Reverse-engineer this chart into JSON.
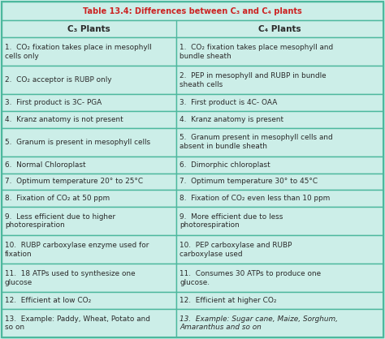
{
  "title": "Table 13.4: Differences between C₃ and C₄ plants",
  "col1_header": "C₃ Plants",
  "col2_header": "C₄ Plants",
  "rows": [
    [
      "CO₂ fixation takes place in mesophyll\ncells only",
      "CO₂ fixation takes place mesophyll and\nbundle sheath"
    ],
    [
      "CO₂ acceptor is RUBP only",
      "PEP in mesophyll and RUBP in bundle\nsheath cells"
    ],
    [
      "First product is 3C- PGA",
      "First product is 4C- OAA"
    ],
    [
      "Kranz anatomy is not present",
      "Kranz anatomy is present"
    ],
    [
      "Granum is present in mesophyll cells",
      "Granum present in mesophyll cells and\nabsent in bundle sheath"
    ],
    [
      "Normal Chloroplast",
      "Dimorphic chloroplast"
    ],
    [
      "Optimum temperature 20° to 25°C",
      "Optimum temperature 30° to 45°C"
    ],
    [
      "Fixation of CO₂ at 50 ppm",
      "Fixation of CO₂ even less than 10 ppm"
    ],
    [
      "Less efficient due to higher\nphotorespiration",
      "More efficient due to less\nphotorespiration"
    ],
    [
      "RUBP carboxylase enzyme used for\nfixation",
      "PEP carboxylase and RUBP\ncarboxylase used"
    ],
    [
      "18 ATPs used to synthesize one\nglucose",
      "Consumes 30 ATPs to produce one\nglucose."
    ],
    [
      "Efficient at low CO₂",
      "Efficient at higher CO₂"
    ],
    [
      "Example: Paddy, Wheat, Potato and\nso on",
      "Example: Sugar cane, Maize, Sorghum,\nAmaranthus and so on"
    ]
  ],
  "bg_color": "#cceee8",
  "border_color": "#4db89e",
  "title_color": "#cc2222",
  "text_color": "#2a2a2a",
  "title_fontsize": 7.0,
  "header_fontsize": 7.5,
  "cell_fontsize": 6.4,
  "fig_width": 4.74,
  "fig_height": 4.18,
  "dpi": 100
}
